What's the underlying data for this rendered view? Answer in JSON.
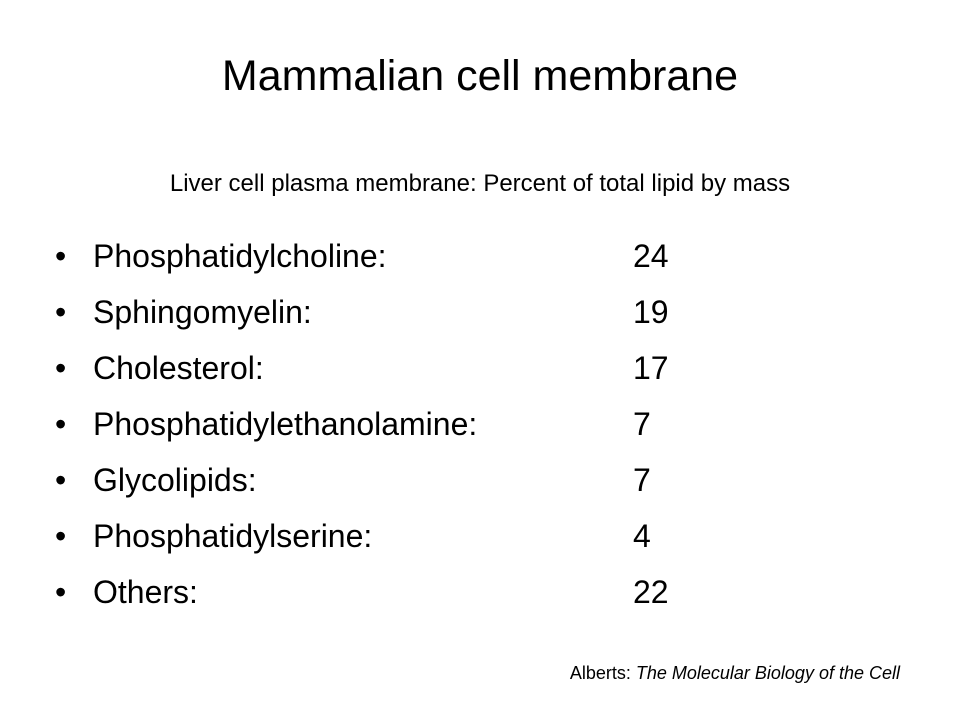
{
  "slide": {
    "title": "Mammalian cell membrane",
    "subtitle": "Liver cell plasma membrane: Percent of total lipid by mass",
    "bullet_glyph": "•",
    "items": [
      {
        "label": "Phosphatidylcholine:",
        "value": "24"
      },
      {
        "label": "Sphingomyelin:",
        "value": "19"
      },
      {
        "label": "Cholesterol:",
        "value": "17"
      },
      {
        "label": "Phosphatidylethanolamine:",
        "value": "7"
      },
      {
        "label": "Glycolipids:",
        "value": "7"
      },
      {
        "label": "Phosphatidylserine:",
        "value": "4"
      },
      {
        "label": "Others:",
        "value": "22"
      }
    ],
    "citation": {
      "author": "Alberts:",
      "work": "The Molecular Biology of the Cell"
    }
  }
}
